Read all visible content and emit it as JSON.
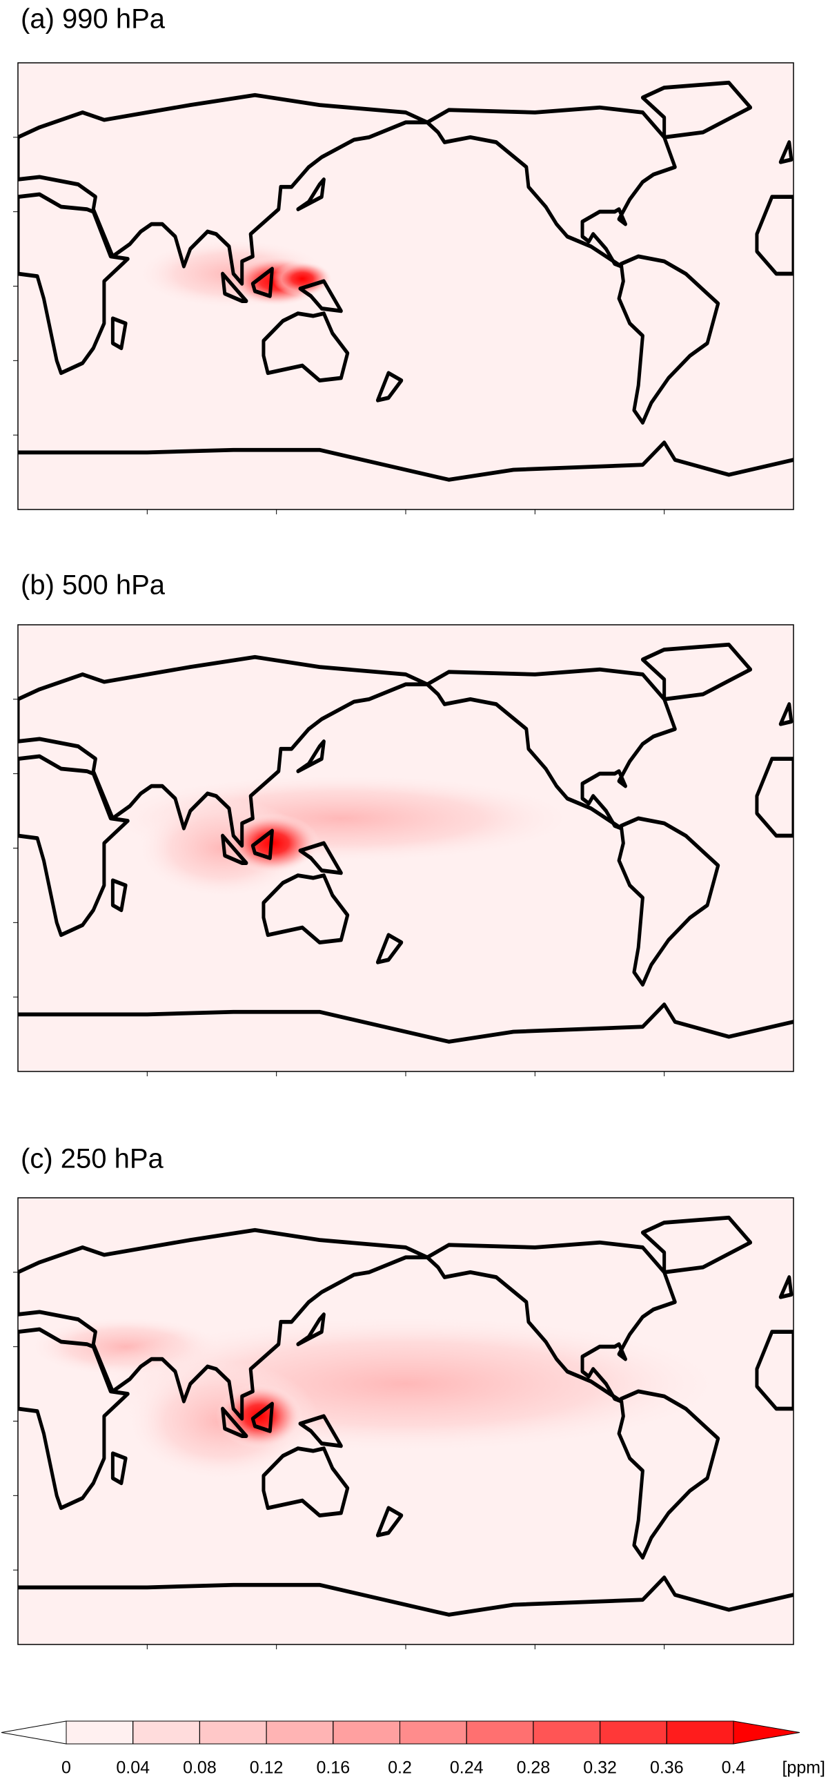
{
  "panels": [
    {
      "title": "(a) 990 hPa"
    },
    {
      "title": "(b) 500 hPa"
    },
    {
      "title": "(c) 250 hPa"
    }
  ],
  "colorbar": {
    "lim": [
      0,
      0.4
    ],
    "ticks": [
      0,
      0.04,
      0.08,
      0.12,
      0.16,
      0.2,
      0.24,
      0.28,
      0.32,
      0.36,
      0.4
    ],
    "unit": "[ppm]",
    "under_color": "#ffffff",
    "over_color": "#ff0000",
    "colors": [
      "#fff0f0",
      "#ffdcdc",
      "#ffc8c8",
      "#ffb4b4",
      "#ffa0a0",
      "#ff8c8c",
      "#ff7070",
      "#ff5555",
      "#ff3838",
      "#ff1c1c"
    ]
  }
}
